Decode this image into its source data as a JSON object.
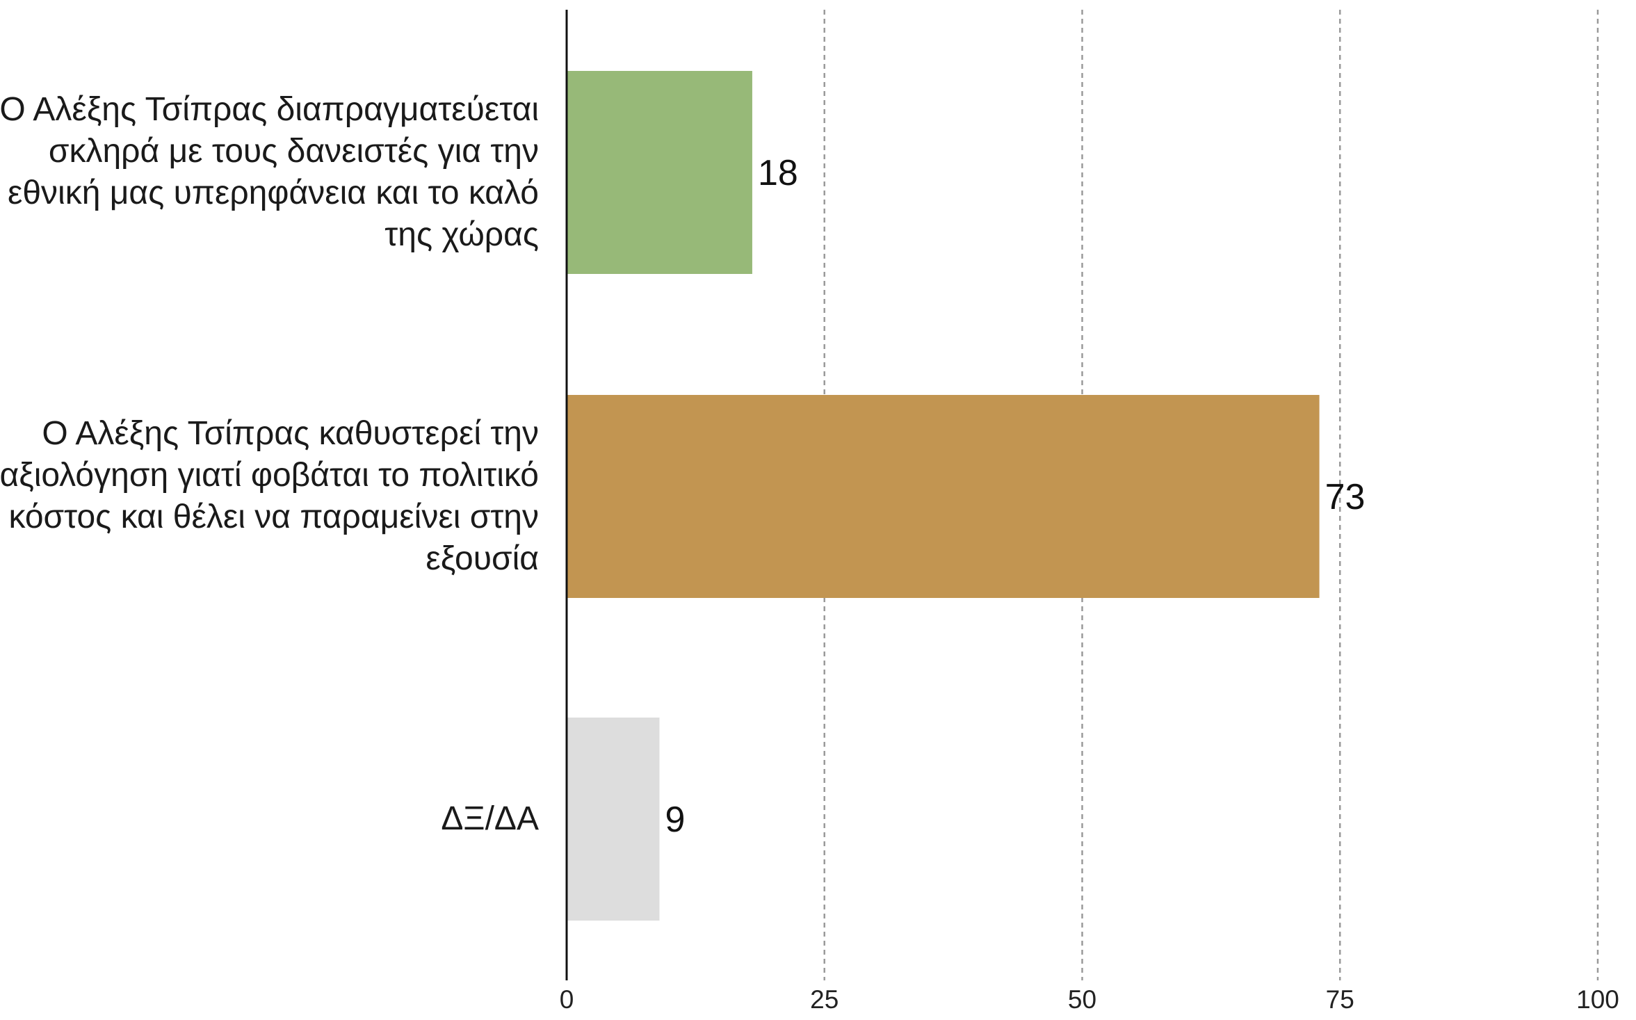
{
  "chart_data": {
    "type": "bar",
    "orientation": "horizontal",
    "categories": [
      "Ο Αλέξης Τσίπρας διαπραγματεύεται σκληρά με τους δανειστές για την εθνική μας υπερηφάνεια και το καλό της χώρας",
      "Ο Αλέξης Τσίπρας καθυστερεί την αξιολόγηση γιατί φοβάται το πολιτικό κόστος και θέλει να παραμείνει στην εξουσία",
      "ΔΞ/ΔΑ"
    ],
    "values": [
      18,
      73,
      9
    ],
    "value_labels": [
      "18",
      "73",
      "9"
    ],
    "bar_colors": [
      "#97b978",
      "#c29551",
      "#dddddd"
    ],
    "xlim": [
      0,
      100
    ],
    "xticks": [
      0,
      25,
      50,
      75,
      100
    ],
    "xtick_labels": [
      "0",
      "25",
      "50",
      "75",
      "100"
    ],
    "grid": "vertical dashed",
    "title": "",
    "xlabel": "",
    "ylabel": ""
  }
}
